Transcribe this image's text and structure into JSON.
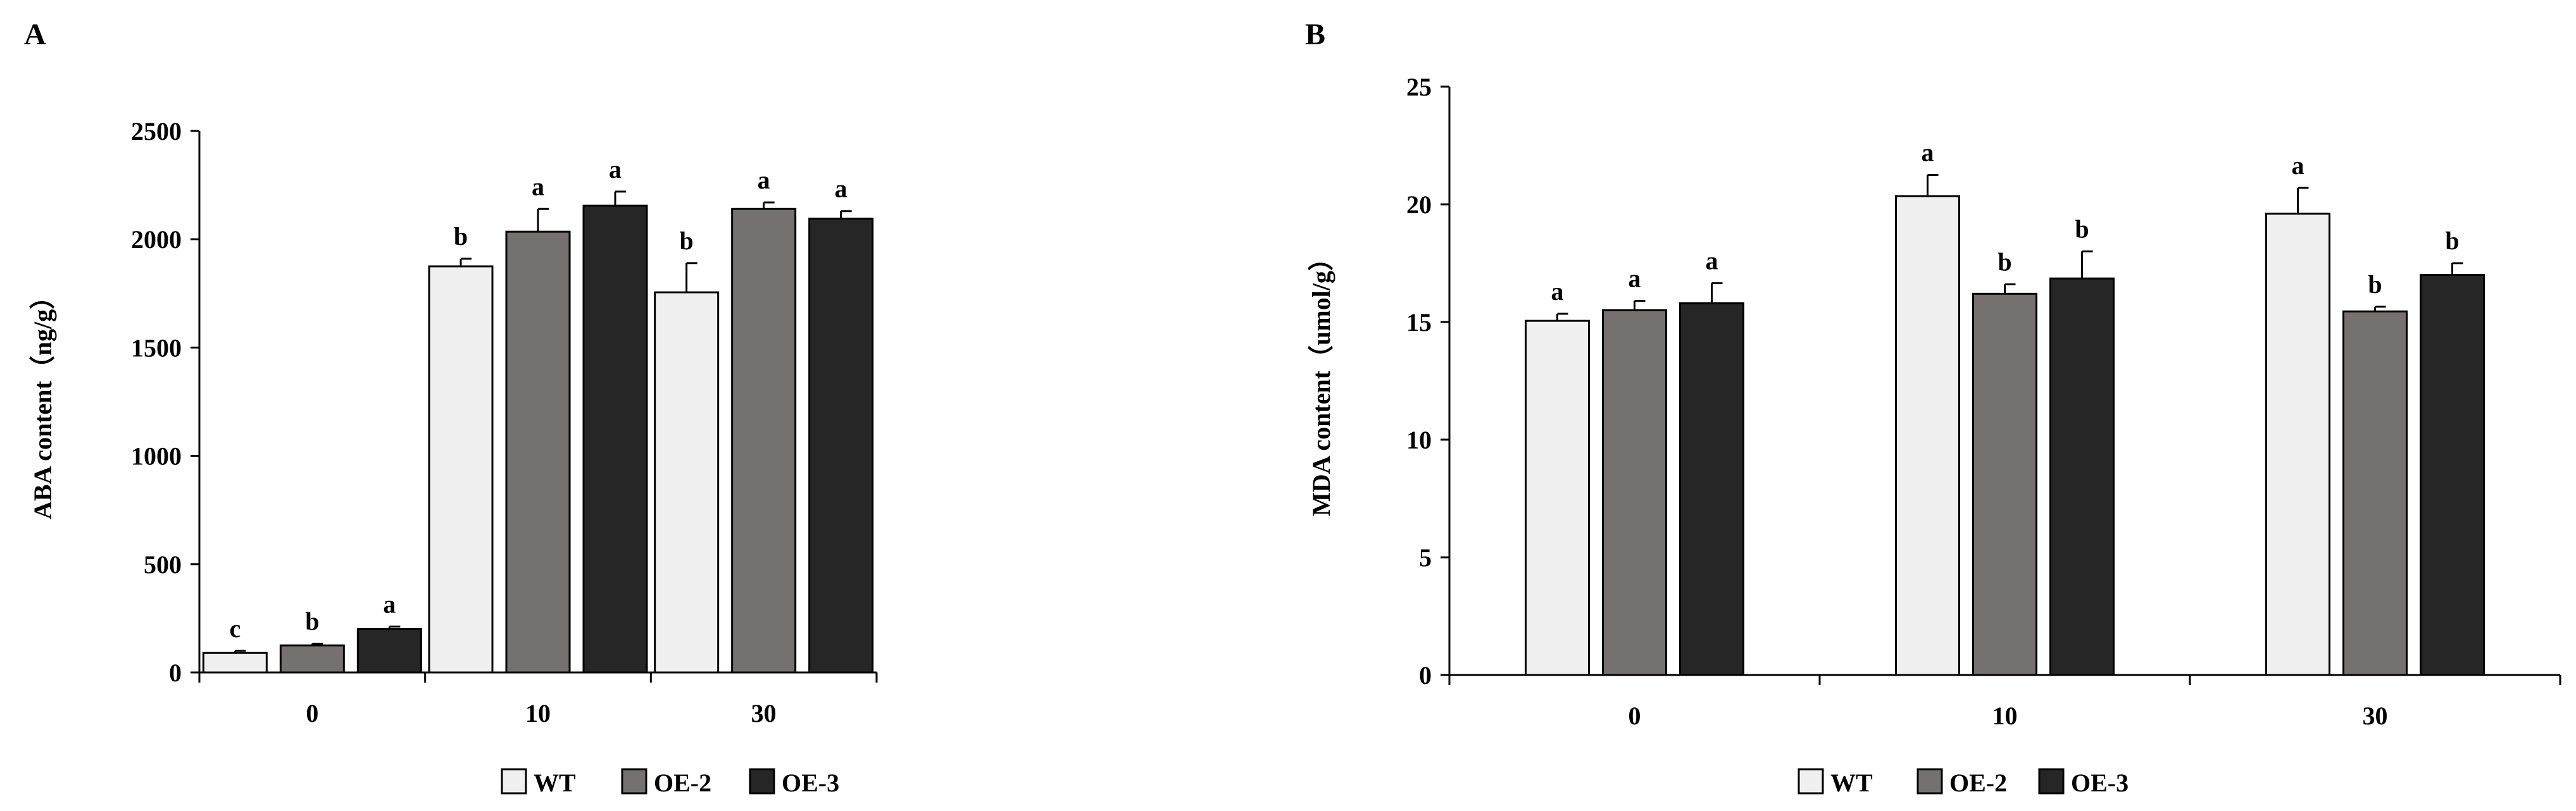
{
  "legend": [
    {
      "label": "WT",
      "color": "#f0f0f0"
    },
    {
      "label": "OE-2",
      "color": "#757171"
    },
    {
      "label": "OE-3",
      "color": "#262626"
    }
  ],
  "chart_data": [
    {
      "panel": "A",
      "type": "bar",
      "ylabel": "ABA content（ng/g）",
      "xlabel": "",
      "categories": [
        "0",
        "10",
        "30"
      ],
      "ylim": [
        0,
        2500
      ],
      "yticks": [
        0,
        500,
        1000,
        1500,
        2000,
        2500
      ],
      "grid": false,
      "legend_position": "bottom-center",
      "series": [
        {
          "name": "WT",
          "values": [
            90,
            1875,
            1755
          ],
          "errors": [
            10,
            35,
            135
          ],
          "labels": [
            "c",
            "b",
            "b"
          ]
        },
        {
          "name": "OE-2",
          "values": [
            125,
            2035,
            2140
          ],
          "errors": [
            8,
            105,
            30
          ],
          "labels": [
            "b",
            "a",
            "a"
          ]
        },
        {
          "name": "OE-3",
          "values": [
            200,
            2155,
            2095
          ],
          "errors": [
            12,
            65,
            35
          ],
          "labels": [
            "a",
            "a",
            "a"
          ]
        }
      ]
    },
    {
      "panel": "B",
      "type": "bar",
      "ylabel": "MDA content（umol/g）",
      "xlabel": "",
      "categories": [
        "0",
        "10",
        "30"
      ],
      "ylim": [
        0,
        25
      ],
      "yticks": [
        0,
        5,
        10,
        15,
        20,
        25
      ],
      "grid": false,
      "legend_position": "bottom-center",
      "series": [
        {
          "name": "WT",
          "values": [
            15.05,
            20.35,
            19.6
          ],
          "errors": [
            0.3,
            0.9,
            1.1
          ],
          "labels": [
            "a",
            "a",
            "a"
          ]
        },
        {
          "name": "OE-2",
          "values": [
            15.5,
            16.2,
            15.45
          ],
          "errors": [
            0.4,
            0.4,
            0.2
          ],
          "labels": [
            "a",
            "b",
            "b"
          ]
        },
        {
          "name": "OE-3",
          "values": [
            15.8,
            16.85,
            17.0
          ],
          "errors": [
            0.85,
            1.15,
            0.5
          ],
          "labels": [
            "a",
            "b",
            "b"
          ]
        }
      ]
    }
  ]
}
